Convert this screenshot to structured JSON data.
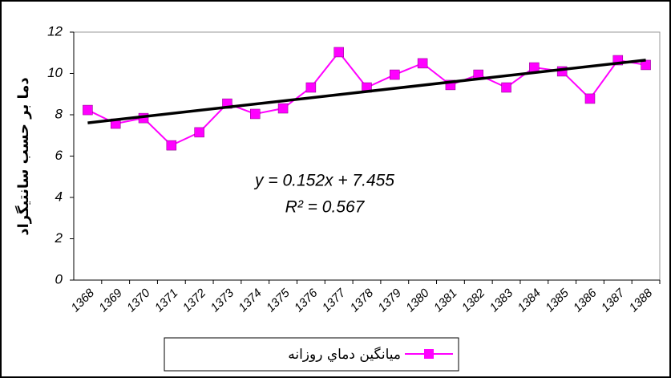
{
  "chart_data": {
    "type": "line",
    "y_label": "دما بر حسب سانتیگراد",
    "categories": [
      "1368",
      "1369",
      "1370",
      "1371",
      "1372",
      "1373",
      "1374",
      "1375",
      "1376",
      "1377",
      "1378",
      "1379",
      "1380",
      "1381",
      "1382",
      "1383",
      "1384",
      "1385",
      "1386",
      "1387",
      "1388"
    ],
    "series": [
      {
        "name": "ميانگين دماي روزانه",
        "color": "#ff00ff",
        "values": [
          8.23,
          7.57,
          7.84,
          6.52,
          7.15,
          8.54,
          8.04,
          8.31,
          9.32,
          11.03,
          9.32,
          9.94,
          10.49,
          9.44,
          9.94,
          9.32,
          10.29,
          10.1,
          8.78,
          10.64,
          10.41
        ]
      }
    ],
    "trendline": {
      "slope": 0.152,
      "intercept": 7.455,
      "color": "#000000"
    },
    "annotations": [
      "y = 0.152x + 7.455",
      "R² = 0.567"
    ],
    "ylim": [
      0,
      12
    ],
    "yticks": [
      0,
      2,
      4,
      6,
      8,
      10,
      12
    ],
    "grid": false
  }
}
